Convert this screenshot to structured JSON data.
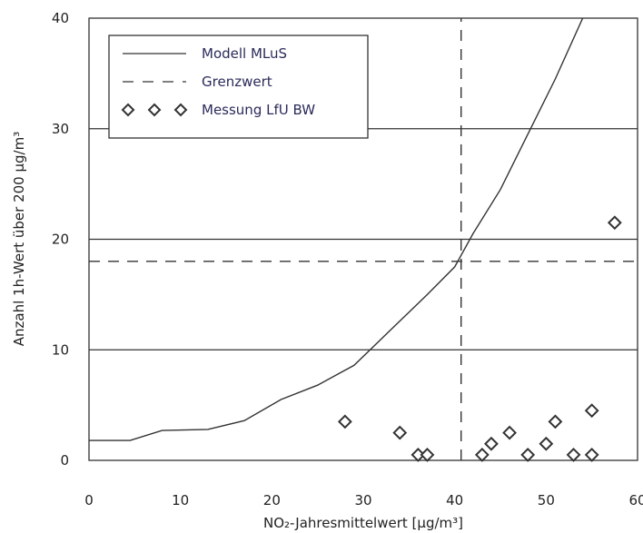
{
  "chart_data": {
    "type": "line",
    "title": "",
    "xlabel": "NO₂-Jahresmittelwert [µg/m³]",
    "ylabel": "Anzahl 1h-Wert über 200 µg/m³",
    "xlim": [
      0,
      60
    ],
    "ylim": [
      0,
      40
    ],
    "x_ticks": [
      "0",
      "10",
      "20",
      "30",
      "40",
      "50",
      "60"
    ],
    "y_ticks": [
      "0",
      "10",
      "20",
      "30",
      "40"
    ],
    "horizontal_grid": [
      10,
      20,
      30
    ],
    "legend_position": "top-left",
    "series": [
      {
        "name": "Modell MLuS",
        "style": "solid",
        "x": [
          0,
          4.5,
          8,
          13,
          17,
          21,
          25,
          29,
          33,
          37,
          40,
          42,
          45,
          48,
          51,
          54,
          55.5
        ],
        "y": [
          1.8,
          1.8,
          2.7,
          2.8,
          3.6,
          5.5,
          6.8,
          8.6,
          11.8,
          15.0,
          17.5,
          20.5,
          24.5,
          29.5,
          34.5,
          40.0,
          42.0
        ]
      },
      {
        "name": "Grenzwert",
        "style": "dashed",
        "segments": [
          {
            "x": [
              0,
              60
            ],
            "y": [
              18,
              18
            ]
          },
          {
            "x": [
              40.7,
              40.7
            ],
            "y": [
              0,
              40
            ]
          }
        ]
      },
      {
        "name": "Messung LfU BW",
        "style": "markers",
        "marker": "diamond",
        "x": [
          28,
          34,
          36,
          37,
          43,
          44,
          46,
          48,
          50,
          51,
          53,
          55,
          55,
          57.5
        ],
        "y": [
          3.5,
          2.5,
          0.5,
          0.5,
          0.5,
          1.5,
          2.5,
          0.5,
          1.5,
          3.5,
          0.5,
          0.5,
          4.5,
          21.5
        ]
      }
    ]
  }
}
